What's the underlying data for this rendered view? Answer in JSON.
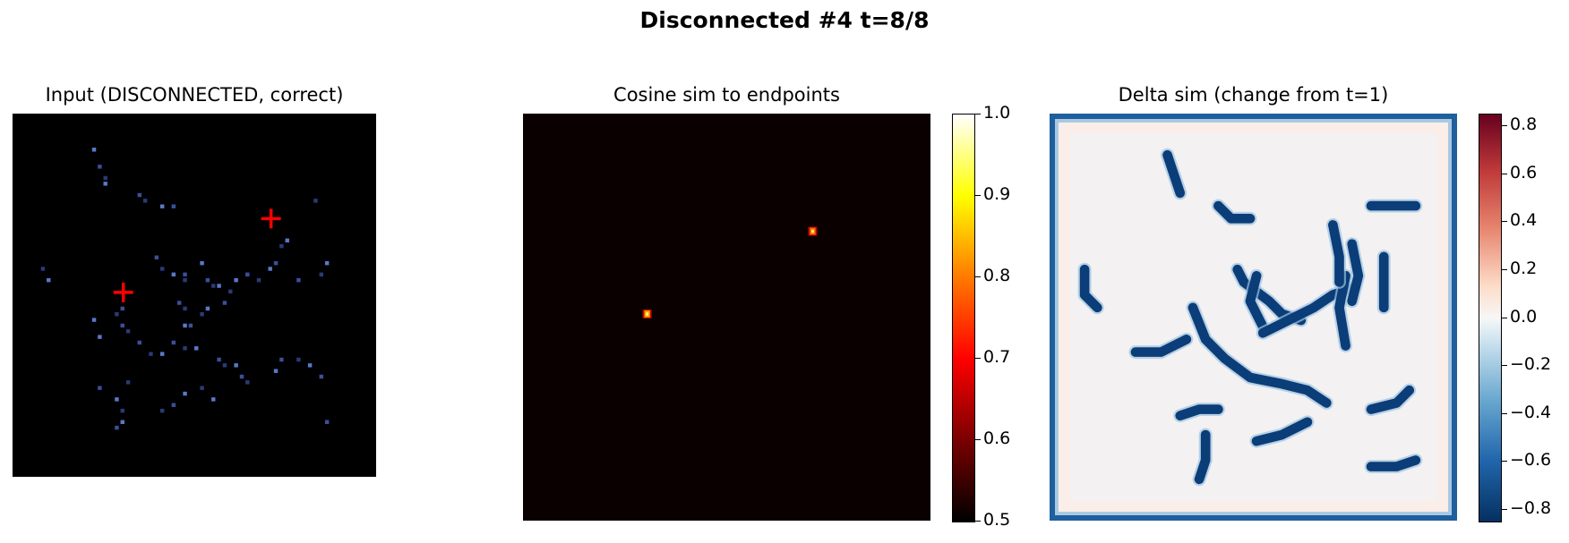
{
  "figure": {
    "suptitle": "Disconnected #4  t=8/8"
  },
  "chart_data": [
    {
      "type": "heatmap",
      "title": "Input (DISCONNECTED, correct)",
      "grid_size": 64,
      "colormap": "dark-blue",
      "endpoints": [
        [
          19,
          31
        ],
        [
          45,
          18
        ]
      ],
      "endpoint_marker": "+",
      "endpoint_color": "#ff0000",
      "bright_pixels": [
        [
          14,
          6
        ],
        [
          15,
          9
        ],
        [
          16,
          11
        ],
        [
          16,
          12
        ],
        [
          22,
          14
        ],
        [
          23,
          15
        ],
        [
          26,
          16
        ],
        [
          28,
          16
        ],
        [
          5,
          27
        ],
        [
          6,
          29
        ],
        [
          25,
          25
        ],
        [
          26,
          27
        ],
        [
          28,
          28
        ],
        [
          30,
          28
        ],
        [
          30,
          29
        ],
        [
          33,
          26
        ],
        [
          34,
          29
        ],
        [
          35,
          30
        ],
        [
          36,
          30
        ],
        [
          37,
          33
        ],
        [
          38,
          31
        ],
        [
          39,
          29
        ],
        [
          41,
          28
        ],
        [
          43,
          29
        ],
        [
          45,
          27
        ],
        [
          46,
          26
        ],
        [
          47,
          23
        ],
        [
          48,
          22
        ],
        [
          50,
          29
        ],
        [
          54,
          28
        ],
        [
          55,
          26
        ],
        [
          19,
          34
        ],
        [
          18,
          35
        ],
        [
          14,
          36
        ],
        [
          19,
          37
        ],
        [
          20,
          38
        ],
        [
          15,
          39
        ],
        [
          29,
          33
        ],
        [
          30,
          34
        ],
        [
          30,
          37
        ],
        [
          31,
          37
        ],
        [
          33,
          35
        ],
        [
          34,
          34
        ],
        [
          22,
          40
        ],
        [
          24,
          42
        ],
        [
          26,
          42
        ],
        [
          28,
          40
        ],
        [
          30,
          41
        ],
        [
          32,
          41
        ],
        [
          36,
          43
        ],
        [
          37,
          44
        ],
        [
          39,
          44
        ],
        [
          40,
          46
        ],
        [
          41,
          47
        ],
        [
          46,
          45
        ],
        [
          47,
          43
        ],
        [
          50,
          43
        ],
        [
          52,
          44
        ],
        [
          54,
          46
        ],
        [
          33,
          48
        ],
        [
          35,
          50
        ],
        [
          28,
          51
        ],
        [
          20,
          47
        ],
        [
          18,
          50
        ],
        [
          15,
          48
        ],
        [
          19,
          52
        ],
        [
          19,
          54
        ],
        [
          18,
          55
        ],
        [
          26,
          52
        ],
        [
          30,
          49
        ],
        [
          55,
          54
        ],
        [
          53,
          15
        ]
      ]
    },
    {
      "type": "heatmap",
      "title": "Cosine sim to endpoints",
      "grid_size": 64,
      "colormap": "hot",
      "hotspots": [
        [
          19,
          31,
          1.0
        ],
        [
          45,
          18,
          0.95
        ]
      ],
      "background_value": 0.5,
      "colorbar": {
        "min": 0.5,
        "max": 1.0,
        "ticks": [
          "1.0",
          "0.9",
          "0.8",
          "0.7",
          "0.6",
          "0.5"
        ]
      }
    },
    {
      "type": "heatmap",
      "title": "Delta sim (change from t=1)",
      "grid_size": 64,
      "colormap": "RdBu_r",
      "background_value": 0.03,
      "border_value": -0.7,
      "segment_value": -0.85,
      "segments": [
        [
          [
            18,
            6
          ],
          [
            19,
            9
          ],
          [
            20,
            12
          ]
        ],
        [
          [
            26,
            14
          ],
          [
            28,
            16
          ],
          [
            31,
            16
          ]
        ],
        [
          [
            5,
            24
          ],
          [
            5,
            28
          ],
          [
            7,
            30
          ]
        ],
        [
          [
            13,
            37
          ],
          [
            17,
            37
          ],
          [
            21,
            35
          ]
        ],
        [
          [
            22,
            30
          ],
          [
            24,
            35
          ],
          [
            27,
            38
          ],
          [
            31,
            41
          ],
          [
            36,
            42
          ],
          [
            40,
            43
          ],
          [
            43,
            45
          ]
        ],
        [
          [
            29,
            24
          ],
          [
            30,
            26
          ],
          [
            34,
            29
          ],
          [
            36,
            31
          ],
          [
            39,
            32
          ]
        ],
        [
          [
            32,
            25
          ],
          [
            31,
            29
          ],
          [
            33,
            33
          ]
        ],
        [
          [
            33,
            34
          ],
          [
            37,
            32
          ],
          [
            41,
            30
          ],
          [
            44,
            28
          ],
          [
            47,
            27
          ]
        ],
        [
          [
            46,
            25
          ],
          [
            45,
            30
          ],
          [
            46,
            36
          ]
        ],
        [
          [
            47,
            20
          ],
          [
            48,
            25
          ],
          [
            47,
            29
          ]
        ],
        [
          [
            52,
            22
          ],
          [
            52,
            26
          ],
          [
            52,
            30
          ]
        ],
        [
          [
            44,
            17
          ],
          [
            45,
            22
          ],
          [
            45,
            26
          ]
        ],
        [
          [
            50,
            14
          ],
          [
            54,
            14
          ],
          [
            57,
            14
          ]
        ],
        [
          [
            20,
            47
          ],
          [
            23,
            46
          ],
          [
            26,
            46
          ]
        ],
        [
          [
            24,
            50
          ],
          [
            24,
            54
          ],
          [
            23,
            57
          ]
        ],
        [
          [
            32,
            51
          ],
          [
            36,
            50
          ],
          [
            40,
            48
          ]
        ],
        [
          [
            50,
            46
          ],
          [
            54,
            45
          ],
          [
            56,
            43
          ]
        ],
        [
          [
            50,
            55
          ],
          [
            54,
            55
          ],
          [
            57,
            54
          ]
        ]
      ],
      "colorbar": {
        "min": -0.85,
        "max": 0.85,
        "ticks": [
          "0.8",
          "0.6",
          "0.4",
          "0.2",
          "0.0",
          "−0.2",
          "−0.4",
          "−0.6",
          "−0.8"
        ]
      }
    }
  ]
}
